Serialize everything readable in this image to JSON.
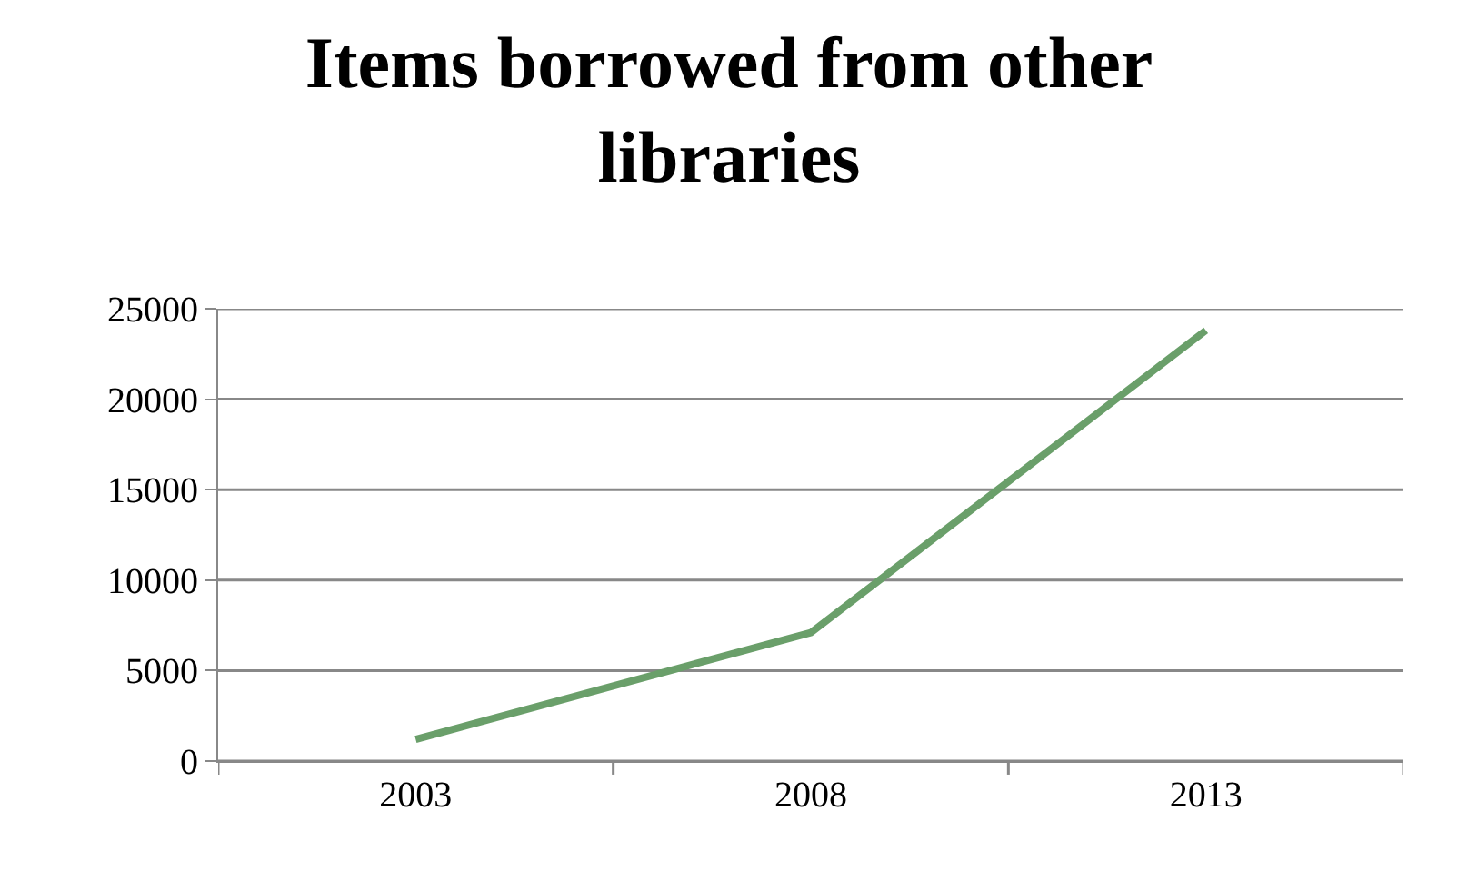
{
  "chart_data": {
    "type": "line",
    "title": "Items borrowed from other libraries",
    "categories": [
      "2003",
      "2008",
      "2013"
    ],
    "series": [
      {
        "color": "#6a9f6a",
        "values": [
          1200,
          7100,
          23800
        ]
      }
    ],
    "ylim": [
      0,
      25000
    ],
    "yticks": [
      0,
      5000,
      10000,
      15000,
      20000,
      25000
    ],
    "grid": "y",
    "marker": "none",
    "line_style": "solid"
  }
}
